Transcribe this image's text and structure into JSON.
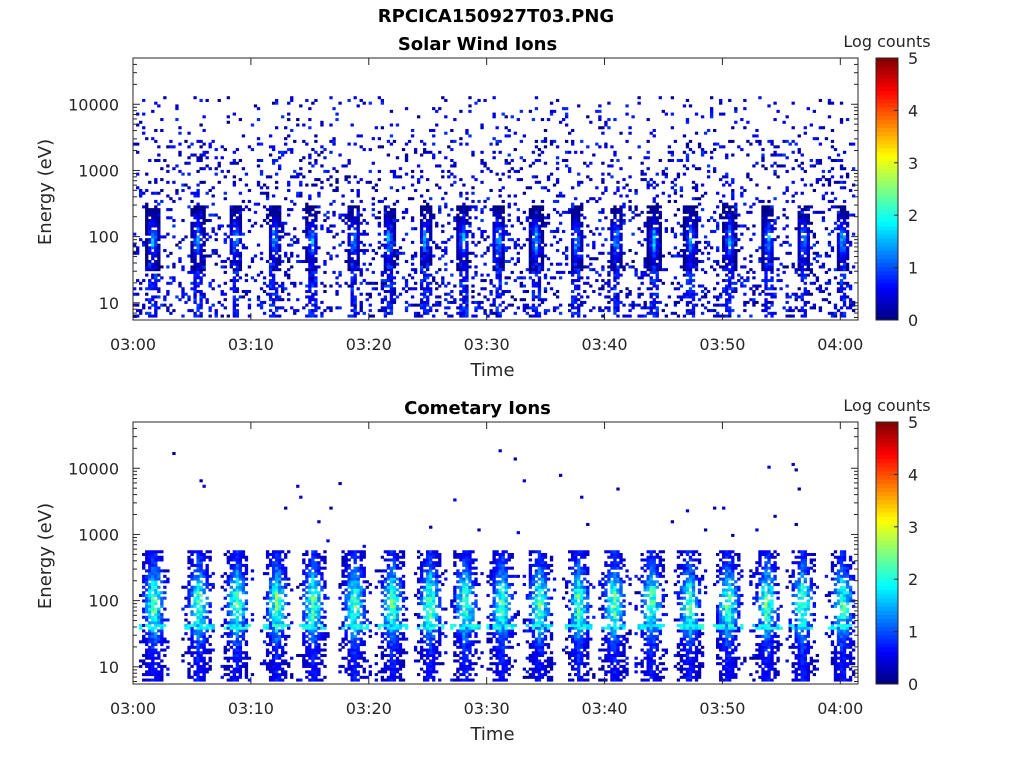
{
  "title": "RPCICA150927T03.PNG",
  "colorbar": {
    "label": "Log counts",
    "ticks": [
      0,
      1,
      2,
      3,
      4,
      5
    ],
    "range": [
      0,
      5
    ],
    "colormap": "jet"
  },
  "chart_data": [
    {
      "type": "heatmap",
      "title": "Solar Wind Ions",
      "xlabel": "Time",
      "ylabel": "Energy (eV)",
      "xticks": [
        "03:00",
        "03:10",
        "03:20",
        "03:30",
        "03:40",
        "03:50",
        "04:00"
      ],
      "xlim_minutes": [
        0,
        61.5
      ],
      "ylim": [
        5.5,
        50000
      ],
      "yscale": "log",
      "yticks": [
        10,
        100,
        1000,
        10000
      ],
      "grid": false,
      "description_values": "sparse low counts (log 0-1) from ~6 eV to ~10000 eV; periodic enhancements ~40-300 eV roughly every 3 minutes reaching log counts ~1.5-2",
      "burst_minutes": [
        1.7,
        5.5,
        8.7,
        12.0,
        15.2,
        18.7,
        21.7,
        24.8,
        28.0,
        31.0,
        34.2,
        37.6,
        41.0,
        44.2,
        47.3,
        50.6,
        53.9,
        56.9,
        60.2
      ],
      "peak_log_counts": 2.0
    },
    {
      "type": "heatmap",
      "title": "Cometary Ions",
      "xlabel": "Time",
      "ylabel": "Energy (eV)",
      "xticks": [
        "03:00",
        "03:10",
        "03:20",
        "03:30",
        "03:40",
        "03:50",
        "04:00"
      ],
      "xlim_minutes": [
        0,
        61.5
      ],
      "ylim": [
        5.5,
        50000
      ],
      "yscale": "log",
      "yticks": [
        10,
        100,
        1000,
        10000
      ],
      "grid": false,
      "description_values": "periodic bursts every ~3 minutes between ~6 eV and ~500 eV with peak log counts ~2.5-3 near 50-150 eV; rare isolated counts up to ~18000 eV",
      "burst_minutes": [
        1.8,
        5.6,
        8.8,
        12.2,
        15.3,
        18.8,
        22.0,
        25.2,
        28.2,
        31.3,
        34.5,
        37.8,
        40.8,
        44.0,
        47.2,
        50.5,
        53.8,
        56.8,
        60.2
      ],
      "peak_log_counts": 3.0
    }
  ]
}
